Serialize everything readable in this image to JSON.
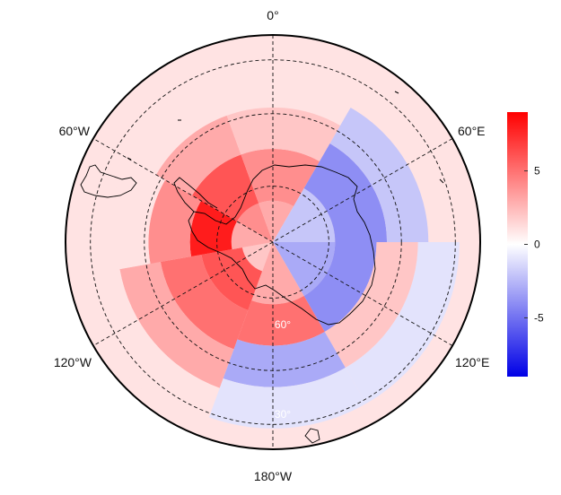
{
  "map": {
    "projection": "south-polar-stereographic",
    "longitude_labels": [
      {
        "text": "0°",
        "lon": 0
      },
      {
        "text": "60°E",
        "lon": 60
      },
      {
        "text": "120°E",
        "lon": 120
      },
      {
        "text": "180°W",
        "lon": 180
      },
      {
        "text": "120°W",
        "lon": -120
      },
      {
        "text": "60°W",
        "lon": -60
      }
    ],
    "latitude_labels": [
      {
        "text": "60°",
        "lat": -60
      },
      {
        "text": "30°",
        "lat": -30
      }
    ],
    "gridline_style": "dashed",
    "data_field": {
      "description_free": true,
      "sectors_deg": [
        {
          "from": -160,
          "to": -100,
          "rings": [
            [
              0.15,
              2
            ],
            [
              0.35,
              6
            ],
            [
              0.55,
              5
            ],
            [
              0.75,
              3
            ],
            [
              0.95,
              1
            ]
          ]
        },
        {
          "from": -100,
          "to": -60,
          "rings": [
            [
              0.2,
              3
            ],
            [
              0.4,
              8
            ],
            [
              0.6,
              4
            ],
            [
              0.8,
              1
            ]
          ]
        },
        {
          "from": -60,
          "to": -20,
          "rings": [
            [
              0.2,
              4
            ],
            [
              0.45,
              6
            ],
            [
              0.65,
              3
            ]
          ]
        },
        {
          "from": -20,
          "to": 30,
          "rings": [
            [
              0.2,
              3
            ],
            [
              0.45,
              4
            ],
            [
              0.65,
              2
            ]
          ]
        },
        {
          "from": 30,
          "to": 90,
          "rings": [
            [
              0.3,
              -2
            ],
            [
              0.55,
              -4
            ],
            [
              0.75,
              -2
            ]
          ]
        },
        {
          "from": 90,
          "to": 150,
          "rings": [
            [
              0.3,
              -3
            ],
            [
              0.5,
              -4
            ],
            [
              0.7,
              2
            ],
            [
              0.9,
              -1
            ]
          ]
        },
        {
          "from": 150,
          "to": 200,
          "rings": [
            [
              0.3,
              3
            ],
            [
              0.5,
              5
            ],
            [
              0.7,
              -3
            ],
            [
              0.9,
              -1
            ]
          ]
        }
      ]
    }
  },
  "colorbar": {
    "vmin": -9,
    "vmax": 9,
    "ticks": [
      {
        "value": 5,
        "label": "5"
      },
      {
        "value": 0,
        "label": "0"
      },
      {
        "value": -5,
        "label": "-5"
      }
    ],
    "colors": {
      "low": "#0000e6",
      "mid": "#ffffff",
      "high": "#ff0000"
    }
  }
}
